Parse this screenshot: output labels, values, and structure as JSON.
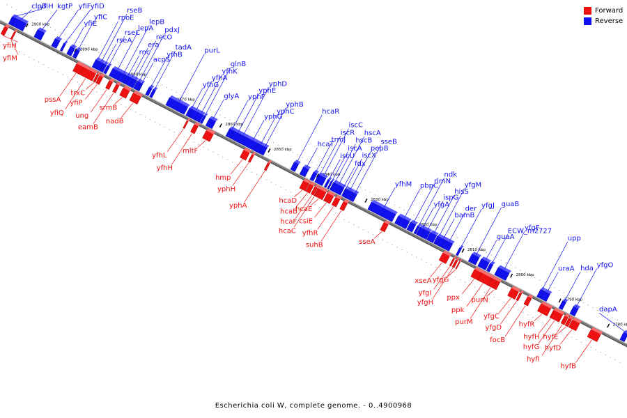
{
  "legend": {
    "forward_label": "Forward",
    "reverse_label": "Reverse",
    "forward_color": "#ee1111",
    "reverse_color": "#1111ee"
  },
  "caption": "Escherichia coli W, complete genome. - 0..4900968",
  "axis": {
    "start_kbp": 2905,
    "end_kbp": 2775,
    "tick_step_kbp": 10,
    "tick_unit": "kbp"
  },
  "reverse_genes": [
    {
      "name": "clpB",
      "pos": 2901.5,
      "len": 2.6
    },
    {
      "name": "kgtP",
      "pos": 2897.2,
      "len": 1.4
    },
    {
      "name": "yfiF",
      "pos": 2893.8,
      "len": 1.0
    },
    {
      "name": "yfiD",
      "pos": 2892.3,
      "len": 0.4
    },
    {
      "name": "yfiE",
      "pos": 2890.7,
      "len": 0.9
    },
    {
      "name": "yfiC",
      "pos": 2889.6,
      "len": 0.7
    },
    {
      "name": "rpoE",
      "pos": 2885.6,
      "len": 0.6
    },
    {
      "name": "rseB",
      "pos": 2884.8,
      "len": 0.9
    },
    {
      "name": "rseA",
      "pos": 2884.0,
      "len": 0.6
    },
    {
      "name": "rseC",
      "pos": 2883.3,
      "len": 0.5
    },
    {
      "name": "lepA",
      "pos": 2881.5,
      "len": 1.8
    },
    {
      "name": "lepB",
      "pos": 2880.2,
      "len": 1.0
    },
    {
      "name": "rnc",
      "pos": 2879.3,
      "len": 0.7
    },
    {
      "name": "era",
      "pos": 2878.5,
      "len": 0.9
    },
    {
      "name": "recO",
      "pos": 2877.8,
      "len": 0.7
    },
    {
      "name": "pdxJ",
      "pos": 2877.0,
      "len": 0.7
    },
    {
      "name": "acpS",
      "pos": 2876.4,
      "len": 0.4
    },
    {
      "name": "yfhB",
      "pos": 2874.6,
      "len": 0.6
    },
    {
      "name": "tadA",
      "pos": 2873.8,
      "len": 0.5
    },
    {
      "name": "purL",
      "pos": 2868.8,
      "len": 3.8
    },
    {
      "name": "yfhG",
      "pos": 2866.2,
      "len": 0.7
    },
    {
      "name": "yfhA",
      "pos": 2865.3,
      "len": 1.3
    },
    {
      "name": "yfhK",
      "pos": 2864.2,
      "len": 1.0
    },
    {
      "name": "glnB",
      "pos": 2863.4,
      "len": 0.4
    },
    {
      "name": "glyA",
      "pos": 2861.8,
      "len": 1.3
    },
    {
      "name": "yphF",
      "pos": 2857.8,
      "len": 1.0
    },
    {
      "name": "yphE",
      "pos": 2856.6,
      "len": 1.5
    },
    {
      "name": "yphD",
      "pos": 2855.5,
      "len": 1.0
    },
    {
      "name": "yphG",
      "pos": 2853.5,
      "len": 3.3
    },
    {
      "name": "yphC",
      "pos": 2851.9,
      "len": 1.0
    },
    {
      "name": "yphB",
      "pos": 2851.0,
      "len": 0.9
    },
    {
      "name": "hcaR",
      "pos": 2844.5,
      "len": 0.9
    },
    {
      "name": "hcaT",
      "pos": 2842.5,
      "len": 1.1
    },
    {
      "name": "trmJ",
      "pos": 2840.6,
      "len": 0.7
    },
    {
      "name": "iscR",
      "pos": 2839.7,
      "len": 0.5
    },
    {
      "name": "iscC",
      "pos": 2839.0,
      "len": 1.2
    },
    {
      "name": "iscU",
      "pos": 2837.8,
      "len": 0.4
    },
    {
      "name": "iscA",
      "pos": 2837.2,
      "len": 0.3
    },
    {
      "name": "hscB",
      "pos": 2836.6,
      "len": 0.5
    },
    {
      "name": "hscA",
      "pos": 2835.8,
      "len": 1.8
    },
    {
      "name": "fdx",
      "pos": 2834.8,
      "len": 0.3
    },
    {
      "name": "iscX",
      "pos": 2834.3,
      "len": 0.2
    },
    {
      "name": "pepB",
      "pos": 2833.5,
      "len": 1.3
    },
    {
      "name": "sseB",
      "pos": 2832.4,
      "len": 0.8
    },
    {
      "name": "yfhM",
      "pos": 2826.5,
      "len": 5.0
    },
    {
      "name": "pbpC",
      "pos": 2822.3,
      "len": 2.3
    },
    {
      "name": "rlmN",
      "pos": 2820.4,
      "len": 1.1
    },
    {
      "name": "ndk",
      "pos": 2819.3,
      "len": 0.4
    },
    {
      "name": "yfgA",
      "pos": 2818.5,
      "len": 1.0
    },
    {
      "name": "ispG",
      "pos": 2817.5,
      "len": 1.1
    },
    {
      "name": "hisS",
      "pos": 2816.2,
      "len": 1.3
    },
    {
      "name": "yfgM",
      "pos": 2815.1,
      "len": 0.6
    },
    {
      "name": "bamB",
      "pos": 2814.2,
      "len": 1.2
    },
    {
      "name": "der",
      "pos": 2813.0,
      "len": 1.5
    },
    {
      "name": "yfgJ",
      "pos": 2810.6,
      "len": 0.4
    },
    {
      "name": "guaB",
      "pos": 2807.5,
      "len": 1.5
    },
    {
      "name": "guaA",
      "pos": 2805.5,
      "len": 1.6
    },
    {
      "name": "ECW_m2727",
      "pos": 2804.2,
      "len": 0.6
    },
    {
      "name": "yfgF",
      "pos": 2801.7,
      "len": 2.3
    },
    {
      "name": "upp",
      "pos": 2793.8,
      "len": 0.6
    },
    {
      "name": "uraA",
      "pos": 2792.8,
      "len": 1.3
    },
    {
      "name": "hda",
      "pos": 2789.2,
      "len": 0.7
    },
    {
      "name": "yfgO",
      "pos": 2786.8,
      "len": 1.0
    },
    {
      "name": "yfiH",
      "pos": 2902.8,
      "len": 0.7
    },
    {
      "name": "dapA",
      "pos": 2776.5,
      "len": 0.9
    }
  ],
  "forward_genes": [
    {
      "name": "yfiH",
      "pos": 2903.2,
      "len": 0.7
    },
    {
      "name": "yfiM",
      "pos": 2901.4,
      "len": 0.3
    },
    {
      "name": "pssA",
      "pos": 2888.0,
      "len": 1.4
    },
    {
      "name": "yfiQ",
      "pos": 2886.0,
      "len": 2.6
    },
    {
      "name": "trxC",
      "pos": 2884.3,
      "len": 0.4
    },
    {
      "name": "yfiP",
      "pos": 2883.6,
      "len": 0.7
    },
    {
      "name": "ung",
      "pos": 2881.6,
      "len": 0.7
    },
    {
      "name": "eamB",
      "pos": 2880.2,
      "len": 0.6
    },
    {
      "name": "srmB",
      "pos": 2878.4,
      "len": 1.3
    },
    {
      "name": "nadB",
      "pos": 2876.2,
      "len": 1.6
    },
    {
      "name": "yfhL",
      "pos": 2865.8,
      "len": 0.3
    },
    {
      "name": "yfhH",
      "pos": 2864.0,
      "len": 0.8
    },
    {
      "name": "mltF",
      "pos": 2861.2,
      "len": 1.5
    },
    {
      "name": "hmp",
      "pos": 2853.6,
      "len": 1.2
    },
    {
      "name": "yphH",
      "pos": 2852.3,
      "len": 0.4
    },
    {
      "name": "yphA",
      "pos": 2849.0,
      "len": 0.4
    },
    {
      "name": "hcaD",
      "pos": 2841.3,
      "len": 1.2
    },
    {
      "name": "hcaB",
      "pos": 2840.2,
      "len": 0.8
    },
    {
      "name": "hcaF",
      "pos": 2839.3,
      "len": 0.5
    },
    {
      "name": "hcaC",
      "pos": 2838.8,
      "len": 0.3
    },
    {
      "name": "hcaE",
      "pos": 2837.9,
      "len": 1.4
    },
    {
      "name": "csiE",
      "pos": 2836.3,
      "len": 1.3
    },
    {
      "name": "yfhR",
      "pos": 2834.8,
      "len": 0.9
    },
    {
      "name": "suhB",
      "pos": 2833.2,
      "len": 0.8
    },
    {
      "name": "sseA",
      "pos": 2824.8,
      "len": 0.9
    },
    {
      "name": "xseA",
      "pos": 2812.4,
      "len": 1.4
    },
    {
      "name": "yfgI",
      "pos": 2810.8,
      "len": 0.3
    },
    {
      "name": "yfgH",
      "pos": 2810.2,
      "len": 0.4
    },
    {
      "name": "yfgG",
      "pos": 2809.6,
      "len": 0.2
    },
    {
      "name": "ppx",
      "pos": 2805.8,
      "len": 1.5
    },
    {
      "name": "ppk",
      "pos": 2804.0,
      "len": 2.1
    },
    {
      "name": "purM",
      "pos": 2802.4,
      "len": 1.0
    },
    {
      "name": "purN",
      "pos": 2801.6,
      "len": 0.6
    },
    {
      "name": "yfgC",
      "pos": 2798.2,
      "len": 1.5
    },
    {
      "name": "yfgD",
      "pos": 2797.0,
      "len": 0.4
    },
    {
      "name": "focB",
      "pos": 2795.2,
      "len": 0.8
    },
    {
      "name": "hyfR",
      "pos": 2791.8,
      "len": 2.0
    },
    {
      "name": "hyfH",
      "pos": 2790.0,
      "len": 0.5
    },
    {
      "name": "hyfG",
      "pos": 2789.2,
      "len": 1.7
    },
    {
      "name": "hyfI",
      "pos": 2787.6,
      "len": 0.7
    },
    {
      "name": "hyfE",
      "pos": 2786.8,
      "len": 0.6
    },
    {
      "name": "hyfD",
      "pos": 2785.6,
      "len": 1.5
    },
    {
      "name": "hyfB",
      "pos": 2781.5,
      "len": 2.0
    }
  ]
}
